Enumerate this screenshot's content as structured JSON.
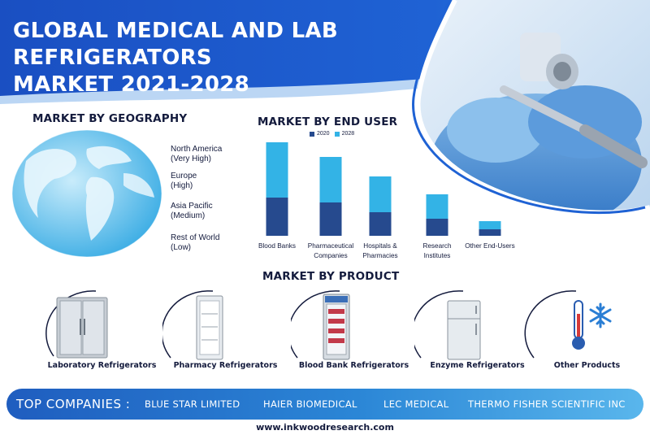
{
  "title": {
    "line1": "GLOBAL MEDICAL AND LAB REFRIGERATORS",
    "line2": "MARKET 2021-2028"
  },
  "colors": {
    "header_blue": "#1b57c9",
    "dark_series": "#264a8e",
    "light_series": "#33b3e6",
    "text_dark": "#141b3d"
  },
  "geography": {
    "heading": "MARKET BY GEOGRAPHY",
    "regions": [
      {
        "name": "North America",
        "level": "(Very High)"
      },
      {
        "name": "Europe",
        "level": "(High)"
      },
      {
        "name": "Asia Pacific",
        "level": "(Medium)"
      },
      {
        "name": "Rest of World",
        "level": "(Low)"
      }
    ]
  },
  "end_user": {
    "heading": "MARKET BY END USER"
  },
  "chart_data": {
    "type": "bar",
    "categories": [
      [
        "Blood Banks"
      ],
      [
        "Pharmaceutical",
        "Companies"
      ],
      [
        "Hospitals &",
        "Pharmacies"
      ],
      [
        "Research",
        "Institutes"
      ],
      [
        "Other End-Users"
      ]
    ],
    "series": [
      {
        "name": "2020",
        "color": "#264a8e",
        "values": [
          47,
          41,
          29,
          21,
          8
        ]
      },
      {
        "name": "2028",
        "color": "#33b3e6",
        "values": [
          115,
          97,
          73,
          51,
          18
        ]
      }
    ],
    "ylim": [
      0,
      120
    ],
    "grid": false,
    "legend": "top",
    "note": "2028 bar drawn behind the 2020 bar (overlapping stack)"
  },
  "products": {
    "heading": "MARKET BY PRODUCT",
    "items": [
      {
        "label": "Laboratory Refrigerators",
        "icon": "lab-fridge-icon"
      },
      {
        "label": "Pharmacy Refrigerators",
        "icon": "pharmacy-fridge-icon"
      },
      {
        "label": "Blood Bank Refrigerators",
        "icon": "blood-bank-fridge-icon"
      },
      {
        "label": "Enzyme Refrigerators",
        "icon": "enzyme-fridge-icon"
      },
      {
        "label": "Other Products",
        "icon": "thermometer-snowflake-icon"
      }
    ]
  },
  "companies": {
    "title": "TOP COMPANIES :",
    "list": [
      "BLUE STAR LIMITED",
      "HAIER BIOMEDICAL",
      "LEC MEDICAL",
      "THERMO FISHER SCIENTIFIC INC"
    ]
  },
  "website": "www.inkwoodresearch.com"
}
